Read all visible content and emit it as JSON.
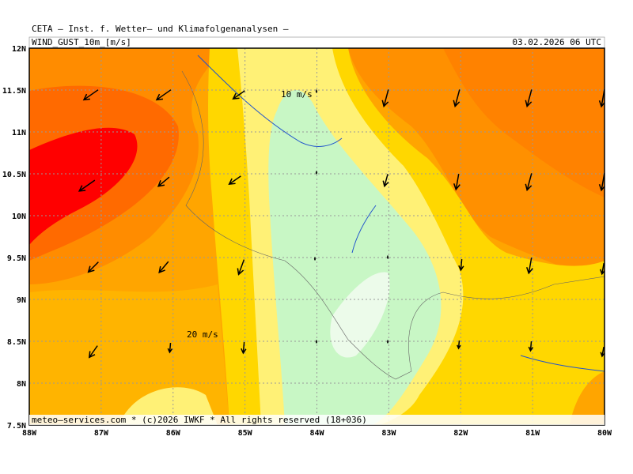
{
  "header": {
    "title": "CETA — Inst. f. Wetter— und Klimafolgenanalysen —",
    "variable": "WIND_GUST_10m_[m/s]",
    "valid_time": "03.02.2026 06 UTC"
  },
  "map": {
    "lat_labels": [
      "12N",
      "11.5N",
      "11N",
      "10.5N",
      "10N",
      "9.5N",
      "9N",
      "8.5N",
      "8N",
      "7.5N"
    ],
    "lon_labels": [
      "88W",
      "87W",
      "86W",
      "85W",
      "84W",
      "83W",
      "82W",
      "81W",
      "80W"
    ],
    "annotations": [
      "10 m/s",
      "20 m/s"
    ]
  },
  "footer": "meteo—services.com * (c)2026 IWKF * All rights reserved (18+036)"
}
